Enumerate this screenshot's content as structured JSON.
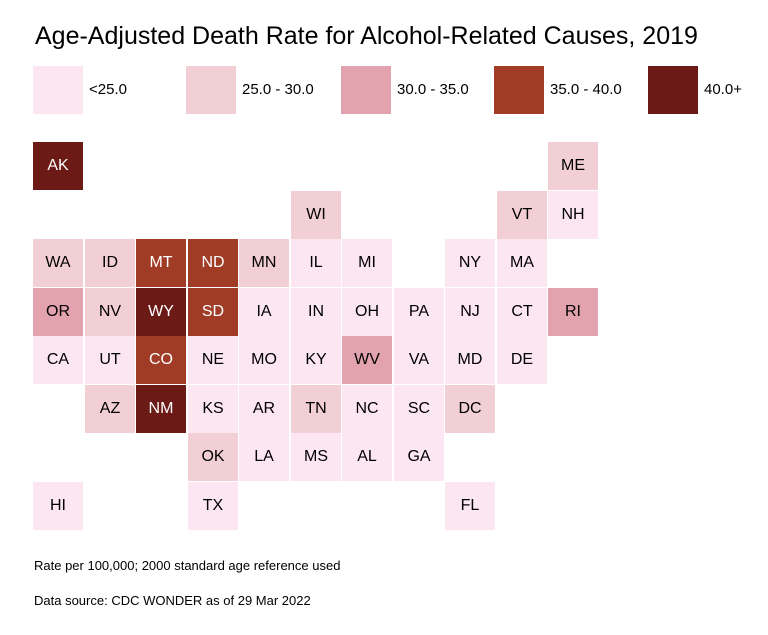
{
  "title": "Age-Adjusted Death Rate for Alcohol-Related Causes, 2019",
  "legend": [
    {
      "label": "<25.0",
      "color": "#fce6f2"
    },
    {
      "label": "25.0 - 30.0",
      "color": "#f2cfd5"
    },
    {
      "label": "30.0 - 35.0",
      "color": "#e2a2ae"
    },
    {
      "label": "35.0 - 40.0",
      "color": "#a03c26"
    },
    {
      "label": "40.0+",
      "color": "#6b1a16"
    }
  ],
  "states": [
    {
      "abbr": "AK",
      "bin": 4,
      "row": 0,
      "col": 0
    },
    {
      "abbr": "ME",
      "bin": 1,
      "row": 0,
      "col": 10
    },
    {
      "abbr": "WI",
      "bin": 1,
      "row": 1,
      "col": 5
    },
    {
      "abbr": "VT",
      "bin": 1,
      "row": 1,
      "col": 9
    },
    {
      "abbr": "NH",
      "bin": 0,
      "row": 1,
      "col": 10
    },
    {
      "abbr": "WA",
      "bin": 1,
      "row": 2,
      "col": 0
    },
    {
      "abbr": "ID",
      "bin": 1,
      "row": 2,
      "col": 1
    },
    {
      "abbr": "MT",
      "bin": 3,
      "row": 2,
      "col": 2
    },
    {
      "abbr": "ND",
      "bin": 3,
      "row": 2,
      "col": 3
    },
    {
      "abbr": "MN",
      "bin": 1,
      "row": 2,
      "col": 4
    },
    {
      "abbr": "IL",
      "bin": 0,
      "row": 2,
      "col": 5
    },
    {
      "abbr": "MI",
      "bin": 0,
      "row": 2,
      "col": 6
    },
    {
      "abbr": "NY",
      "bin": 0,
      "row": 2,
      "col": 8
    },
    {
      "abbr": "MA",
      "bin": 0,
      "row": 2,
      "col": 9
    },
    {
      "abbr": "OR",
      "bin": 2,
      "row": 3,
      "col": 0
    },
    {
      "abbr": "NV",
      "bin": 1,
      "row": 3,
      "col": 1
    },
    {
      "abbr": "WY",
      "bin": 4,
      "row": 3,
      "col": 2
    },
    {
      "abbr": "SD",
      "bin": 3,
      "row": 3,
      "col": 3
    },
    {
      "abbr": "IA",
      "bin": 0,
      "row": 3,
      "col": 4
    },
    {
      "abbr": "IN",
      "bin": 0,
      "row": 3,
      "col": 5
    },
    {
      "abbr": "OH",
      "bin": 0,
      "row": 3,
      "col": 6
    },
    {
      "abbr": "PA",
      "bin": 0,
      "row": 3,
      "col": 7
    },
    {
      "abbr": "NJ",
      "bin": 0,
      "row": 3,
      "col": 8
    },
    {
      "abbr": "CT",
      "bin": 0,
      "row": 3,
      "col": 9
    },
    {
      "abbr": "RI",
      "bin": 2,
      "row": 3,
      "col": 10
    },
    {
      "abbr": "CA",
      "bin": 0,
      "row": 4,
      "col": 0
    },
    {
      "abbr": "UT",
      "bin": 0,
      "row": 4,
      "col": 1
    },
    {
      "abbr": "CO",
      "bin": 3,
      "row": 4,
      "col": 2
    },
    {
      "abbr": "NE",
      "bin": 0,
      "row": 4,
      "col": 3
    },
    {
      "abbr": "MO",
      "bin": 0,
      "row": 4,
      "col": 4
    },
    {
      "abbr": "KY",
      "bin": 0,
      "row": 4,
      "col": 5
    },
    {
      "abbr": "WV",
      "bin": 2,
      "row": 4,
      "col": 6
    },
    {
      "abbr": "VA",
      "bin": 0,
      "row": 4,
      "col": 7
    },
    {
      "abbr": "MD",
      "bin": 0,
      "row": 4,
      "col": 8
    },
    {
      "abbr": "DE",
      "bin": 0,
      "row": 4,
      "col": 9
    },
    {
      "abbr": "AZ",
      "bin": 1,
      "row": 5,
      "col": 1
    },
    {
      "abbr": "NM",
      "bin": 4,
      "row": 5,
      "col": 2
    },
    {
      "abbr": "KS",
      "bin": 0,
      "row": 5,
      "col": 3
    },
    {
      "abbr": "AR",
      "bin": 0,
      "row": 5,
      "col": 4
    },
    {
      "abbr": "TN",
      "bin": 1,
      "row": 5,
      "col": 5
    },
    {
      "abbr": "NC",
      "bin": 0,
      "row": 5,
      "col": 6
    },
    {
      "abbr": "SC",
      "bin": 0,
      "row": 5,
      "col": 7
    },
    {
      "abbr": "DC",
      "bin": 1,
      "row": 5,
      "col": 8
    },
    {
      "abbr": "OK",
      "bin": 1,
      "row": 6,
      "col": 3
    },
    {
      "abbr": "LA",
      "bin": 0,
      "row": 6,
      "col": 4
    },
    {
      "abbr": "MS",
      "bin": 0,
      "row": 6,
      "col": 5
    },
    {
      "abbr": "AL",
      "bin": 0,
      "row": 6,
      "col": 6
    },
    {
      "abbr": "GA",
      "bin": 0,
      "row": 6,
      "col": 7
    },
    {
      "abbr": "HI",
      "bin": 0,
      "row": 7,
      "col": 0
    },
    {
      "abbr": "TX",
      "bin": 0,
      "row": 7,
      "col": 3
    },
    {
      "abbr": "FL",
      "bin": 0,
      "row": 7,
      "col": 8
    }
  ],
  "notes": {
    "rate": "Rate per 100,000; 2000 standard age reference used",
    "source": "Data source: CDC WONDER as of 29 Mar 2022"
  }
}
